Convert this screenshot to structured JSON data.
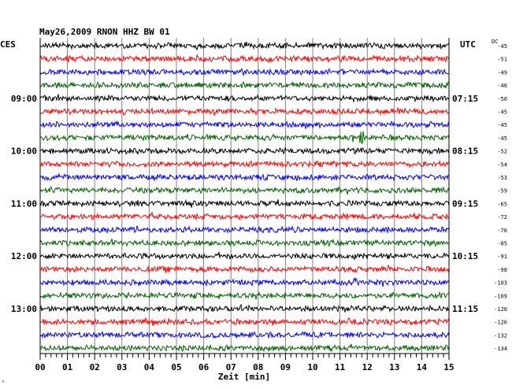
{
  "header": {
    "title": "May26,2009   RNON HHZ BW 01",
    "left_zone": "CES",
    "right_zone": "UTC",
    "dc_label": "DC"
  },
  "chart_data": {
    "type": "line",
    "title": "May26,2009   RNON HHZ BW 01",
    "xlabel": "Zeit [min]",
    "x_ticks": [
      "00",
      "01",
      "02",
      "03",
      "04",
      "05",
      "06",
      "07",
      "08",
      "09",
      "10",
      "11",
      "12",
      "13",
      "14",
      "15"
    ],
    "xlim": [
      0,
      15
    ],
    "grid": true,
    "left_time_labels": [
      "09:00",
      "10:00",
      "11:00",
      "12:00",
      "13:00"
    ],
    "right_time_labels": [
      "07:15",
      "08:15",
      "09:15",
      "10:15",
      "11:15"
    ],
    "dc_offsets": [
      "-45",
      "-51",
      "-49",
      "-46",
      "-50",
      "-45",
      "-45",
      "-45",
      "-52",
      "-54",
      "-53",
      "-59",
      "-65",
      "-72",
      "-76",
      "-85",
      "-91",
      "-98",
      "-103",
      "-109",
      "-120",
      "-126",
      "-132",
      "-134"
    ],
    "trace_colors": [
      "#000000",
      "#ff0000",
      "#0000ff",
      "#006400"
    ],
    "trace_count": 24
  },
  "footer": {
    "small_mark": "\""
  }
}
